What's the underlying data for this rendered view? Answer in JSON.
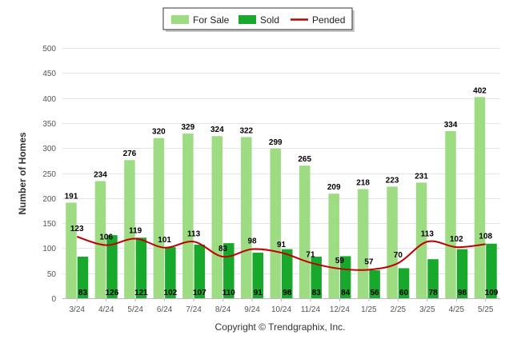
{
  "chart_data": {
    "type": "bar",
    "title": "",
    "xlabel": "",
    "ylabel": "Number of Homes",
    "ylim": [
      0,
      500
    ],
    "yticks": [
      0,
      50,
      100,
      150,
      200,
      250,
      300,
      350,
      400,
      450,
      500
    ],
    "grid": true,
    "legend_position": "top-center",
    "categories": [
      "3/24",
      "4/24",
      "5/24",
      "6/24",
      "7/24",
      "8/24",
      "9/24",
      "10/24",
      "11/24",
      "12/24",
      "1/25",
      "2/25",
      "3/25",
      "4/25",
      "5/25"
    ],
    "series": [
      {
        "name": "For Sale",
        "type": "bar",
        "color": "#9edc84",
        "values": [
          191,
          234,
          276,
          320,
          329,
          324,
          322,
          299,
          265,
          209,
          218,
          223,
          231,
          334,
          402
        ]
      },
      {
        "name": "Sold",
        "type": "bar",
        "color": "#18a82c",
        "values": [
          83,
          126,
          121,
          102,
          107,
          110,
          91,
          98,
          83,
          84,
          56,
          60,
          78,
          98,
          109
        ]
      },
      {
        "name": "Pended",
        "type": "line",
        "color": "#c00000",
        "values": [
          123,
          106,
          119,
          101,
          113,
          83,
          98,
          91,
          71,
          59,
          57,
          70,
          113,
          102,
          108
        ]
      }
    ],
    "footer": "Copyright © Trendgraphix, Inc."
  }
}
